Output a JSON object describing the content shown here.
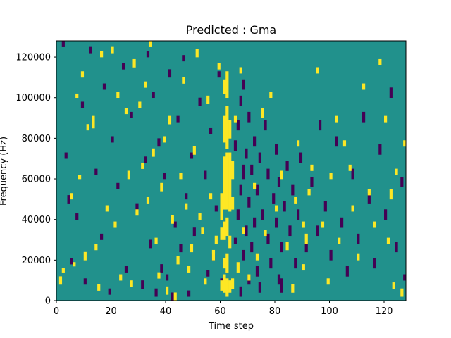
{
  "chart_data": {
    "type": "heatmap",
    "title": "Predicted : Gma",
    "xlabel": "Time step",
    "ylabel": "Frequency (Hz)",
    "xlim": [
      0,
      128
    ],
    "ylim": [
      0,
      128000
    ],
    "x_ticks": [
      0,
      20,
      40,
      60,
      80,
      100,
      120
    ],
    "y_ticks": [
      0,
      20000,
      40000,
      60000,
      80000,
      100000,
      120000
    ],
    "n_time_steps": 128,
    "n_freq_bins": 128,
    "values_legend": {
      "low": -1,
      "mid": 0,
      "high": 1
    },
    "colors": {
      "low": "#440154",
      "mid": "#21918c",
      "high": "#fde725"
    },
    "cells_high": [
      [
        1,
        8,
        11
      ],
      [
        2,
        14,
        15
      ],
      [
        5,
        50,
        52
      ],
      [
        6,
        17,
        18
      ],
      [
        7,
        100,
        101
      ],
      [
        8,
        60,
        61
      ],
      [
        9,
        110,
        112
      ],
      [
        10,
        20,
        23
      ],
      [
        11,
        84,
        86
      ],
      [
        13,
        85,
        90
      ],
      [
        14,
        25,
        27
      ],
      [
        15,
        5,
        7
      ],
      [
        16,
        120,
        122
      ],
      [
        18,
        44,
        46
      ],
      [
        20,
        122,
        124
      ],
      [
        21,
        36,
        38
      ],
      [
        22,
        100,
        102
      ],
      [
        23,
        10,
        12
      ],
      [
        25,
        92,
        94
      ],
      [
        26,
        60,
        63
      ],
      [
        27,
        7,
        9
      ],
      [
        28,
        115,
        118
      ],
      [
        29,
        42,
        44
      ],
      [
        30,
        95,
        97
      ],
      [
        31,
        65,
        67
      ],
      [
        32,
        105,
        107
      ],
      [
        33,
        48,
        50
      ],
      [
        34,
        125,
        127
      ],
      [
        35,
        71,
        74
      ],
      [
        36,
        28,
        30
      ],
      [
        37,
        11,
        13
      ],
      [
        38,
        54,
        57
      ],
      [
        39,
        78,
        80
      ],
      [
        40,
        3,
        6
      ],
      [
        41,
        87,
        90
      ],
      [
        42,
        38,
        41
      ],
      [
        43,
        0,
        3
      ],
      [
        44,
        18,
        21
      ],
      [
        45,
        60,
        62
      ],
      [
        46,
        107,
        109
      ],
      [
        47,
        45,
        47
      ],
      [
        48,
        14,
        16
      ],
      [
        49,
        24,
        27
      ],
      [
        50,
        72,
        75
      ],
      [
        51,
        120,
        123
      ],
      [
        52,
        40,
        42
      ],
      [
        53,
        33,
        35
      ],
      [
        54,
        8,
        10
      ],
      [
        55,
        97,
        100
      ],
      [
        56,
        50,
        52
      ],
      [
        57,
        20,
        24
      ],
      [
        58,
        28,
        31
      ],
      [
        59,
        114,
        116
      ],
      [
        60,
        5,
        9
      ],
      [
        60,
        30,
        35
      ],
      [
        60,
        40,
        52
      ],
      [
        61,
        4,
        12
      ],
      [
        61,
        16,
        20
      ],
      [
        61,
        30,
        38
      ],
      [
        61,
        45,
        70
      ],
      [
        61,
        78,
        90
      ],
      [
        61,
        102,
        108
      ],
      [
        62,
        2,
        10
      ],
      [
        62,
        14,
        22
      ],
      [
        62,
        32,
        40
      ],
      [
        62,
        45,
        72
      ],
      [
        62,
        75,
        95
      ],
      [
        62,
        100,
        112
      ],
      [
        63,
        4,
        9
      ],
      [
        63,
        26,
        31
      ],
      [
        63,
        44,
        72
      ],
      [
        63,
        80,
        88
      ],
      [
        64,
        6,
        10
      ],
      [
        64,
        45,
        50
      ],
      [
        64,
        60,
        68
      ],
      [
        65,
        88,
        90
      ],
      [
        66,
        14,
        18
      ],
      [
        67,
        112,
        114
      ],
      [
        68,
        33,
        35
      ],
      [
        70,
        10,
        12
      ],
      [
        72,
        55,
        57
      ],
      [
        73,
        20,
        22
      ],
      [
        75,
        90,
        94
      ],
      [
        76,
        32,
        34
      ],
      [
        78,
        100,
        102
      ],
      [
        80,
        44,
        46
      ],
      [
        82,
        60,
        63
      ],
      [
        84,
        25,
        28
      ],
      [
        86,
        4,
        7
      ],
      [
        87,
        48,
        50
      ],
      [
        88,
        76,
        78
      ],
      [
        90,
        15,
        17
      ],
      [
        90,
        36,
        38
      ],
      [
        91,
        28,
        32
      ],
      [
        92,
        52,
        54
      ],
      [
        93,
        64,
        66
      ],
      [
        95,
        112,
        114
      ],
      [
        97,
        36,
        38
      ],
      [
        99,
        8,
        10
      ],
      [
        100,
        60,
        62
      ],
      [
        102,
        88,
        90
      ],
      [
        103,
        28,
        30
      ],
      [
        105,
        76,
        78
      ],
      [
        107,
        64,
        66
      ],
      [
        108,
        44,
        46
      ],
      [
        110,
        20,
        22
      ],
      [
        112,
        104,
        106
      ],
      [
        114,
        52,
        54
      ],
      [
        116,
        36,
        38
      ],
      [
        118,
        116,
        118
      ],
      [
        120,
        88,
        90
      ],
      [
        121,
        28,
        30
      ],
      [
        122,
        50,
        54
      ],
      [
        123,
        6,
        8
      ],
      [
        124,
        62,
        64
      ],
      [
        126,
        2,
        5
      ],
      [
        127,
        76,
        78
      ]
    ],
    "cells_low": [
      [
        2,
        125,
        127
      ],
      [
        3,
        70,
        72
      ],
      [
        4,
        48,
        51
      ],
      [
        5,
        18,
        20
      ],
      [
        7,
        40,
        42
      ],
      [
        9,
        95,
        97
      ],
      [
        10,
        8,
        10
      ],
      [
        12,
        122,
        124
      ],
      [
        14,
        62,
        64
      ],
      [
        16,
        30,
        32
      ],
      [
        17,
        104,
        106
      ],
      [
        19,
        3,
        5
      ],
      [
        20,
        78,
        80
      ],
      [
        22,
        55,
        57
      ],
      [
        24,
        114,
        116
      ],
      [
        25,
        14,
        16
      ],
      [
        27,
        90,
        92
      ],
      [
        29,
        44,
        47
      ],
      [
        31,
        6,
        9
      ],
      [
        32,
        68,
        70
      ],
      [
        33,
        120,
        122
      ],
      [
        34,
        26,
        29
      ],
      [
        35,
        100,
        102
      ],
      [
        36,
        2,
        5
      ],
      [
        37,
        76,
        79
      ],
      [
        38,
        14,
        17
      ],
      [
        39,
        60,
        62
      ],
      [
        40,
        10,
        12
      ],
      [
        41,
        110,
        113
      ],
      [
        42,
        0,
        3
      ],
      [
        43,
        36,
        38
      ],
      [
        44,
        88,
        90
      ],
      [
        45,
        24,
        27
      ],
      [
        46,
        118,
        120
      ],
      [
        47,
        50,
        52
      ],
      [
        48,
        2,
        4
      ],
      [
        49,
        70,
        72
      ],
      [
        50,
        32,
        35
      ],
      [
        52,
        96,
        99
      ],
      [
        54,
        60,
        63
      ],
      [
        55,
        12,
        14
      ],
      [
        56,
        82,
        84
      ],
      [
        57,
        20,
        22
      ],
      [
        58,
        44,
        46
      ],
      [
        59,
        110,
        112
      ],
      [
        60,
        8,
        10
      ],
      [
        65,
        28,
        30
      ],
      [
        65,
        74,
        78
      ],
      [
        66,
        40,
        44
      ],
      [
        66,
        84,
        88
      ],
      [
        67,
        2,
        6
      ],
      [
        67,
        52,
        56
      ],
      [
        67,
        96,
        100
      ],
      [
        68,
        20,
        24
      ],
      [
        68,
        60,
        66
      ],
      [
        68,
        104,
        108
      ],
      [
        69,
        32,
        36
      ],
      [
        69,
        70,
        74
      ],
      [
        70,
        8,
        12
      ],
      [
        70,
        46,
        50
      ],
      [
        70,
        88,
        92
      ],
      [
        71,
        24,
        28
      ],
      [
        71,
        62,
        66
      ],
      [
        72,
        36,
        40
      ],
      [
        72,
        76,
        80
      ],
      [
        73,
        12,
        16
      ],
      [
        73,
        52,
        56
      ],
      [
        74,
        4,
        8
      ],
      [
        74,
        68,
        72
      ],
      [
        75,
        40,
        44
      ],
      [
        76,
        84,
        88
      ],
      [
        77,
        28,
        32
      ],
      [
        77,
        60,
        64
      ],
      [
        78,
        16,
        20
      ],
      [
        79,
        48,
        52
      ],
      [
        80,
        36,
        40
      ],
      [
        80,
        72,
        76
      ],
      [
        81,
        8,
        12
      ],
      [
        81,
        56,
        60
      ],
      [
        82,
        4,
        10
      ],
      [
        82,
        24,
        28
      ],
      [
        83,
        44,
        48
      ],
      [
        84,
        64,
        68
      ],
      [
        85,
        32,
        36
      ],
      [
        86,
        52,
        56
      ],
      [
        87,
        16,
        20
      ],
      [
        88,
        40,
        44
      ],
      [
        89,
        68,
        72
      ],
      [
        91,
        24,
        28
      ],
      [
        93,
        56,
        60
      ],
      [
        95,
        32,
        36
      ],
      [
        96,
        84,
        88
      ],
      [
        98,
        44,
        48
      ],
      [
        100,
        20,
        24
      ],
      [
        102,
        76,
        80
      ],
      [
        104,
        36,
        40
      ],
      [
        106,
        12,
        16
      ],
      [
        108,
        60,
        64
      ],
      [
        110,
        28,
        32
      ],
      [
        112,
        88,
        92
      ],
      [
        114,
        48,
        52
      ],
      [
        116,
        16,
        20
      ],
      [
        118,
        72,
        76
      ],
      [
        120,
        40,
        44
      ],
      [
        122,
        100,
        104
      ],
      [
        124,
        24,
        28
      ],
      [
        126,
        56,
        60
      ],
      [
        127,
        10,
        12
      ]
    ]
  }
}
